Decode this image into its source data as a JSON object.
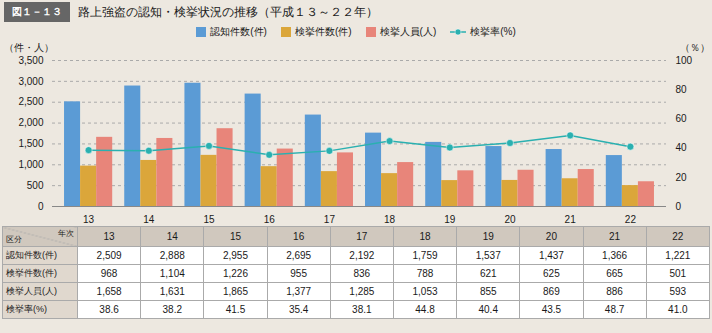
{
  "chart_data": {
    "type": "bar",
    "title": "路上強盗の認知・検挙状況の推移（平成１３～２２年）",
    "annotations": [
      "図１－１３",
      "年次",
      "区分"
    ],
    "categories": [
      "13",
      "14",
      "15",
      "16",
      "17",
      "18",
      "19",
      "20",
      "21",
      "22"
    ],
    "ylabel": "（件・人）",
    "y2label": "（％）",
    "series": [
      {
        "name": "認知件数(件)",
        "color": "#5b9bd5",
        "values": [
          2509,
          2888,
          2955,
          2695,
          2192,
          1759,
          1537,
          1437,
          1366,
          1221
        ],
        "value_labels": [
          "2,509",
          "2,888",
          "2,955",
          "2,695",
          "2,192",
          "1,759",
          "1,537",
          "1,437",
          "1,366",
          "1,221"
        ]
      },
      {
        "name": "検挙件数(件)",
        "color": "#dba63a",
        "values": [
          968,
          1104,
          1226,
          955,
          836,
          788,
          621,
          625,
          665,
          501
        ],
        "value_labels": [
          "968",
          "1,104",
          "1,226",
          "955",
          "836",
          "788",
          "621",
          "625",
          "665",
          "501"
        ]
      },
      {
        "name": "検挙人員(人)",
        "color": "#e8857a",
        "values": [
          1658,
          1631,
          1865,
          1377,
          1285,
          1053,
          855,
          869,
          886,
          593
        ],
        "value_labels": [
          "1,658",
          "1,631",
          "1,865",
          "1,377",
          "1,285",
          "1,053",
          "855",
          "869",
          "886",
          "593"
        ]
      },
      {
        "name": "検挙率(%)",
        "type": "line",
        "axis": "y2",
        "color": "#2ab0b0",
        "marker": "circle",
        "values": [
          38.6,
          38.2,
          41.5,
          35.4,
          38.1,
          44.8,
          40.4,
          43.5,
          48.7,
          41.0
        ],
        "value_labels": [
          "38.6",
          "38.2",
          "41.5",
          "35.4",
          "38.1",
          "44.8",
          "40.4",
          "43.5",
          "48.7",
          "41.0"
        ]
      }
    ],
    "ylim": [
      0,
      3500
    ],
    "yticks": [
      0,
      500,
      {
        "value": 1000,
        "label": "1,000"
      },
      {
        "value": 1500,
        "label": "1,500"
      },
      {
        "value": 2000,
        "label": "2,000"
      },
      {
        "value": 2500,
        "label": "2,500"
      },
      {
        "value": 3000,
        "label": "3,000"
      },
      {
        "value": 3500,
        "label": "3,500"
      }
    ],
    "y2lim": [
      0,
      100
    ],
    "y2ticks": [
      0,
      20,
      40,
      60,
      80,
      100
    ],
    "grid": true,
    "legend": "top",
    "data_labels": true
  }
}
